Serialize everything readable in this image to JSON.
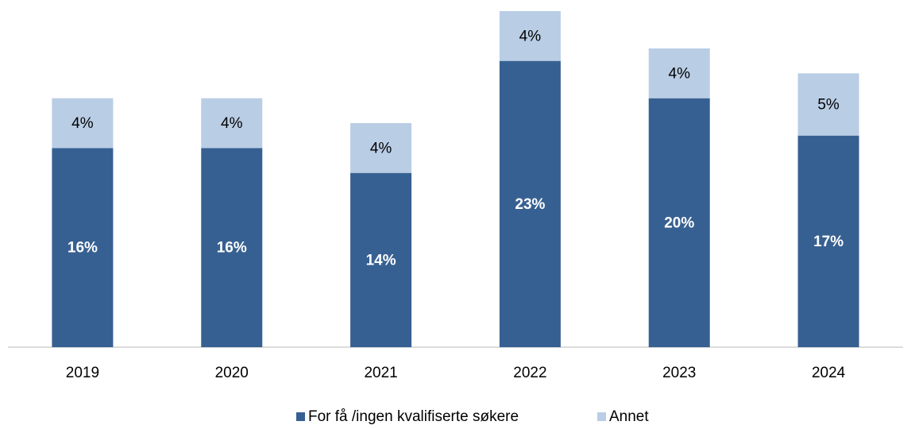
{
  "chart_data": {
    "type": "stacked_bar",
    "categories": [
      "2019",
      "2020",
      "2021",
      "2022",
      "2023",
      "2024"
    ],
    "series": [
      {
        "name": "For få /ingen kvalifiserte søkere",
        "color": "#376092",
        "values": [
          16,
          16,
          14,
          23,
          20,
          17
        ],
        "value_labels": [
          "16%",
          "16%",
          "14%",
          "23%",
          "20%",
          "17%"
        ]
      },
      {
        "name": "Annet",
        "color": "#b9cde5",
        "values": [
          4,
          4,
          4,
          4,
          4,
          5
        ],
        "value_labels": [
          "4%",
          "4%",
          "4%",
          "4%",
          "4%",
          "5%"
        ]
      }
    ],
    "legend": "bottom"
  }
}
